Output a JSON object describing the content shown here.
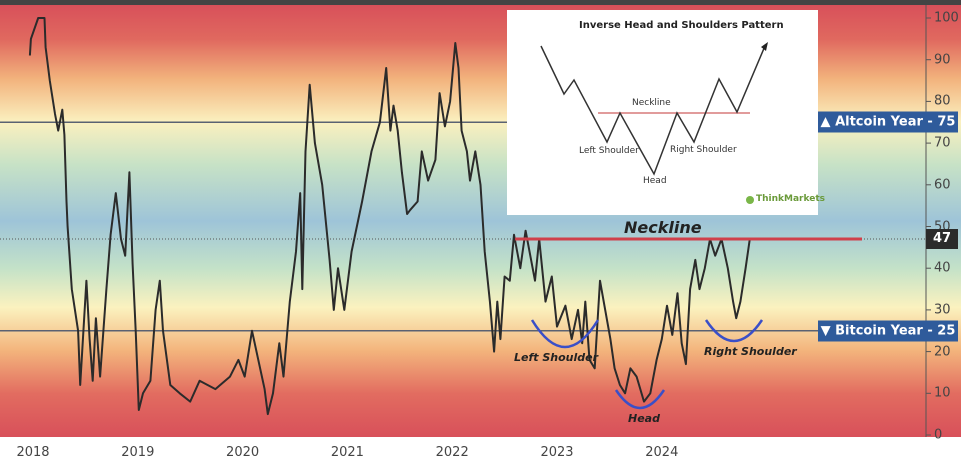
{
  "chart_data": {
    "type": "line",
    "title": "",
    "xlabel": "",
    "ylabel": "",
    "ylim": [
      0,
      100
    ],
    "yticks": [
      0,
      10,
      20,
      30,
      40,
      50,
      60,
      70,
      80,
      90,
      100
    ],
    "xticks": [
      "2018",
      "2019",
      "2020",
      "2021",
      "2022",
      "2023",
      "2024"
    ],
    "background": "red-yellow-blue gradient by value (red near 0 and 100, blue near 50)",
    "line_color": "#2b2b2b",
    "x": [
      2017.97,
      2017.98,
      2018.05,
      2018.11,
      2018.12,
      2018.16,
      2018.21,
      2018.24,
      2018.28,
      2018.3,
      2018.32,
      2018.33,
      2018.37,
      2018.43,
      2018.45,
      2018.51,
      2018.54,
      2018.57,
      2018.6,
      2018.64,
      2018.7,
      2018.74,
      2018.79,
      2018.84,
      2018.88,
      2018.92,
      2018.95,
      2018.98,
      2019.01,
      2019.05,
      2019.12,
      2019.17,
      2019.21,
      2019.24,
      2019.31,
      2019.4,
      2019.5,
      2019.59,
      2019.74,
      2019.88,
      2019.96,
      2020.02,
      2020.09,
      2020.15,
      2020.21,
      2020.24,
      2020.29,
      2020.35,
      2020.39,
      2020.45,
      2020.51,
      2020.55,
      2020.57,
      2020.6,
      2020.64,
      2020.69,
      2020.76,
      2020.83,
      2020.87,
      2020.91,
      2020.97,
      2021.02,
      2021.04,
      2021.14,
      2021.23,
      2021.31,
      2021.37,
      2021.41,
      2021.44,
      2021.48,
      2021.52,
      2021.57,
      2021.6,
      2021.67,
      2021.71,
      2021.77,
      2021.84,
      2021.88,
      2021.93,
      2021.98,
      2022.03,
      2022.06,
      2022.09,
      2022.14,
      2022.17,
      2022.22,
      2022.27,
      2022.31,
      2022.36,
      2022.4,
      2022.43,
      2022.46,
      2022.5,
      2022.55,
      2022.59,
      2022.65,
      2022.7,
      2022.79,
      2022.83,
      2022.89,
      2022.95,
      2023.0,
      2023.08,
      2023.14,
      2023.2,
      2023.24,
      2023.27,
      2023.31,
      2023.36,
      2023.41,
      2023.46,
      2023.51,
      2023.55,
      2023.6,
      2023.65,
      2023.7,
      2023.76,
      2023.83,
      2023.89,
      2023.95,
      2024.0,
      2024.05,
      2024.1,
      2024.15,
      2024.19,
      2024.23,
      2024.27,
      2024.32,
      2024.36,
      2024.41,
      2024.46,
      2024.51,
      2024.57,
      2024.63,
      2024.68,
      2024.71,
      2024.75,
      2024.8,
      2024.84
    ],
    "y": [
      91,
      95,
      100,
      100,
      93,
      85,
      77,
      73,
      78,
      72,
      56,
      50,
      35,
      25,
      12,
      37,
      23,
      13,
      28,
      14,
      35,
      48,
      58,
      47,
      43,
      63,
      41,
      25,
      6,
      10,
      13,
      30,
      37,
      25,
      12,
      10,
      8,
      13,
      11,
      14,
      18,
      14,
      25,
      18,
      11,
      5,
      10,
      22,
      14,
      32,
      44,
      58,
      35,
      68,
      84,
      70,
      60,
      42,
      30,
      40,
      30,
      40,
      44,
      56,
      68,
      75,
      88,
      73,
      79,
      73,
      63,
      53,
      54,
      56,
      68,
      61,
      66,
      82,
      74,
      80,
      94,
      88,
      73,
      68,
      61,
      68,
      60,
      44,
      32,
      20,
      32,
      23,
      38,
      37,
      48,
      40,
      49,
      37,
      47,
      32,
      38,
      26,
      31,
      23,
      30,
      22,
      32,
      18,
      16,
      37,
      30,
      23,
      16,
      12,
      10,
      16,
      14,
      8,
      10,
      18,
      23,
      31,
      24,
      34,
      22,
      17,
      35,
      42,
      35,
      40,
      47,
      43,
      47,
      40,
      32,
      28,
      32,
      40,
      47
    ],
    "reference_lines": [
      {
        "label": "▲ Altcoin Year - 75",
        "value": 75,
        "color": "#2f5b9b"
      },
      {
        "label": "▼ Bitcoin Year - 25",
        "value": 25,
        "color": "#2f5b9b"
      }
    ],
    "current_value": {
      "label": "47",
      "value": 47
    },
    "neckline": {
      "label": "Neckline",
      "value": 47,
      "from": 2022.6,
      "color": "#d0404a"
    },
    "annotations": [
      {
        "label": "Left Shoulder",
        "x": 2023.08,
        "y": 25
      },
      {
        "label": "Head",
        "x": 2023.78,
        "y": 10
      },
      {
        "label": "Right Shoulder",
        "x": 2024.68,
        "y": 25
      }
    ],
    "annotation_color": "#3a4fc8"
  },
  "inset": {
    "title": "Inverse Head and Shoulders Pattern",
    "neckline": "Neckline",
    "left_shoulder": "Left Shoulder",
    "head": "Head",
    "right_shoulder": "Right Shoulder",
    "brand": "ThinkMarkets"
  }
}
